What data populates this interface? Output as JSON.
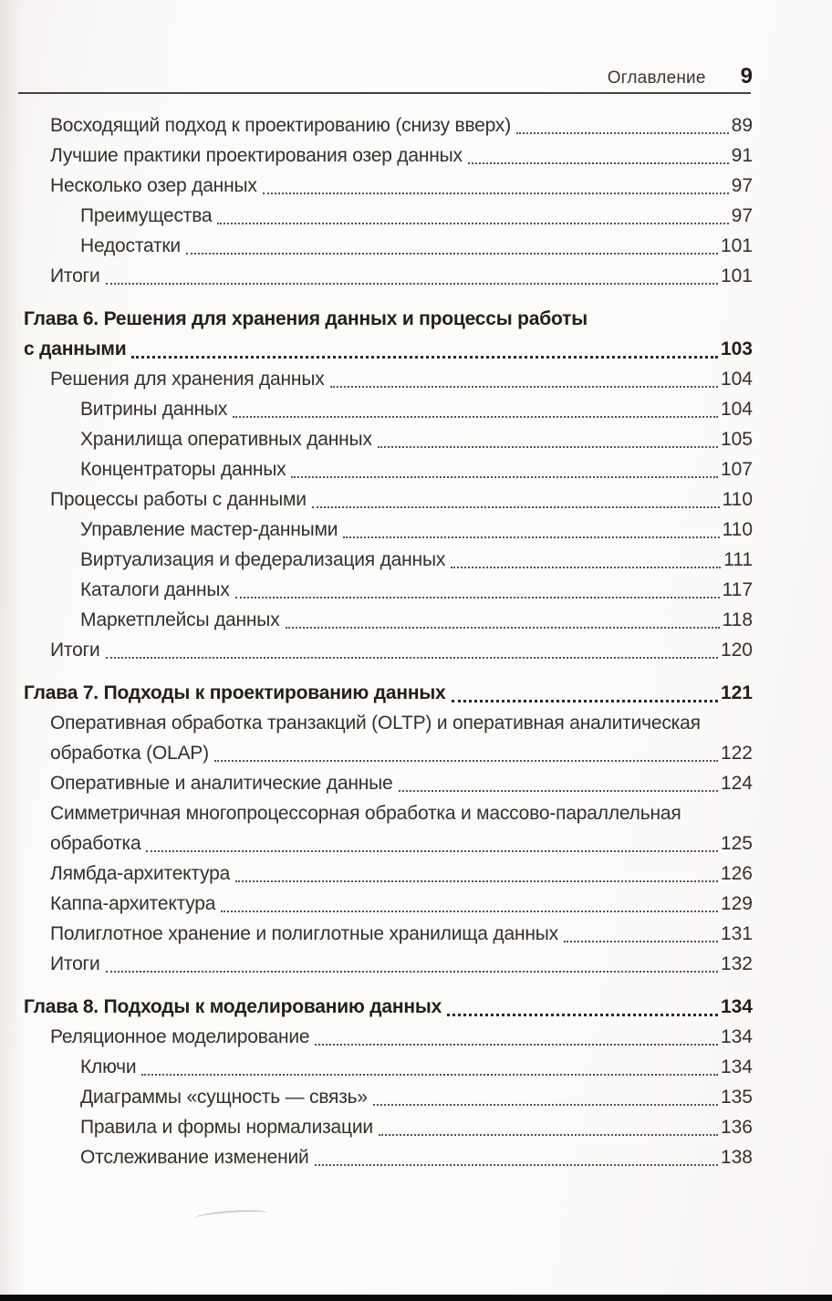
{
  "header": {
    "title": "Оглавление",
    "page_number": "9"
  },
  "colors": {
    "text": "#33302d",
    "heading": "#232019",
    "rule": "#45423f",
    "book_edge": "#0b0b0b"
  },
  "toc": {
    "entries": [
      {
        "line1": "Восходящий подход к проектированию (снизу вверх)",
        "line2": null,
        "page": "89",
        "indent": 1,
        "bold": false
      },
      {
        "line1": "Лучшие практики проектирования озер данных",
        "line2": null,
        "page": "91",
        "indent": 1,
        "bold": false
      },
      {
        "line1": "Несколько озер данных",
        "line2": null,
        "page": "97",
        "indent": 1,
        "bold": false
      },
      {
        "line1": "Преимущества",
        "line2": null,
        "page": "97",
        "indent": 2,
        "bold": false
      },
      {
        "line1": "Недостатки",
        "line2": null,
        "page": "101",
        "indent": 2,
        "bold": false
      },
      {
        "line1": "Итоги",
        "line2": null,
        "page": "101",
        "indent": 1,
        "bold": false
      },
      {
        "line1": "Глава 6. Решения для хранения данных и процессы работы",
        "line2": "с данными",
        "page": "103",
        "indent": 0,
        "bold": true
      },
      {
        "line1": "Решения для хранения данных",
        "line2": null,
        "page": "104",
        "indent": 1,
        "bold": false
      },
      {
        "line1": "Витрины данных",
        "line2": null,
        "page": "104",
        "indent": 2,
        "bold": false
      },
      {
        "line1": "Хранилища оперативных данных",
        "line2": null,
        "page": "105",
        "indent": 2,
        "bold": false
      },
      {
        "line1": "Концентраторы данных",
        "line2": null,
        "page": "107",
        "indent": 2,
        "bold": false
      },
      {
        "line1": "Процессы работы с данными",
        "line2": null,
        "page": "110",
        "indent": 1,
        "bold": false
      },
      {
        "line1": "Управление мастер-данными",
        "line2": null,
        "page": "110",
        "indent": 2,
        "bold": false
      },
      {
        "line1": "Виртуализация и федерализация данных",
        "line2": null,
        "page": "111",
        "indent": 2,
        "bold": false
      },
      {
        "line1": "Каталоги данных",
        "line2": null,
        "page": "117",
        "indent": 2,
        "bold": false
      },
      {
        "line1": "Маркетплейсы данных",
        "line2": null,
        "page": "118",
        "indent": 2,
        "bold": false
      },
      {
        "line1": "Итоги",
        "line2": null,
        "page": "120",
        "indent": 1,
        "bold": false
      },
      {
        "line1": "Глава 7. Подходы к проектированию данных",
        "line2": null,
        "page": "121",
        "indent": 0,
        "bold": true
      },
      {
        "line1": "Оперативная обработка транзакций (OLTP) и оперативная аналитическая",
        "line2": "обработка (OLAP)",
        "page": "122",
        "indent": 1,
        "bold": false
      },
      {
        "line1": "Оперативные и аналитические данные",
        "line2": null,
        "page": "124",
        "indent": 1,
        "bold": false
      },
      {
        "line1": "Симметричная многопроцессорная обработка и массово-параллельная",
        "line2": "обработка",
        "page": "125",
        "indent": 1,
        "bold": false
      },
      {
        "line1": "Лямбда-архитектура",
        "line2": null,
        "page": "126",
        "indent": 1,
        "bold": false
      },
      {
        "line1": "Каппа-архитектура",
        "line2": null,
        "page": "129",
        "indent": 1,
        "bold": false
      },
      {
        "line1": "Полиглотное хранение и полиглотные хранилища данных",
        "line2": null,
        "page": "131",
        "indent": 1,
        "bold": false
      },
      {
        "line1": "Итоги",
        "line2": null,
        "page": "132",
        "indent": 1,
        "bold": false
      },
      {
        "line1": "Глава 8. Подходы к моделированию данных",
        "line2": null,
        "page": "134",
        "indent": 0,
        "bold": true
      },
      {
        "line1": "Реляционное моделирование",
        "line2": null,
        "page": "134",
        "indent": 1,
        "bold": false
      },
      {
        "line1": "Ключи",
        "line2": null,
        "page": "134",
        "indent": 2,
        "bold": false
      },
      {
        "line1": "Диаграммы «сущность — связь»",
        "line2": null,
        "page": "135",
        "indent": 2,
        "bold": false
      },
      {
        "line1": "Правила и формы нормализации",
        "line2": null,
        "page": "136",
        "indent": 2,
        "bold": false
      },
      {
        "line1": "Отслеживание изменений",
        "line2": null,
        "page": "138",
        "indent": 2,
        "bold": false
      }
    ]
  }
}
